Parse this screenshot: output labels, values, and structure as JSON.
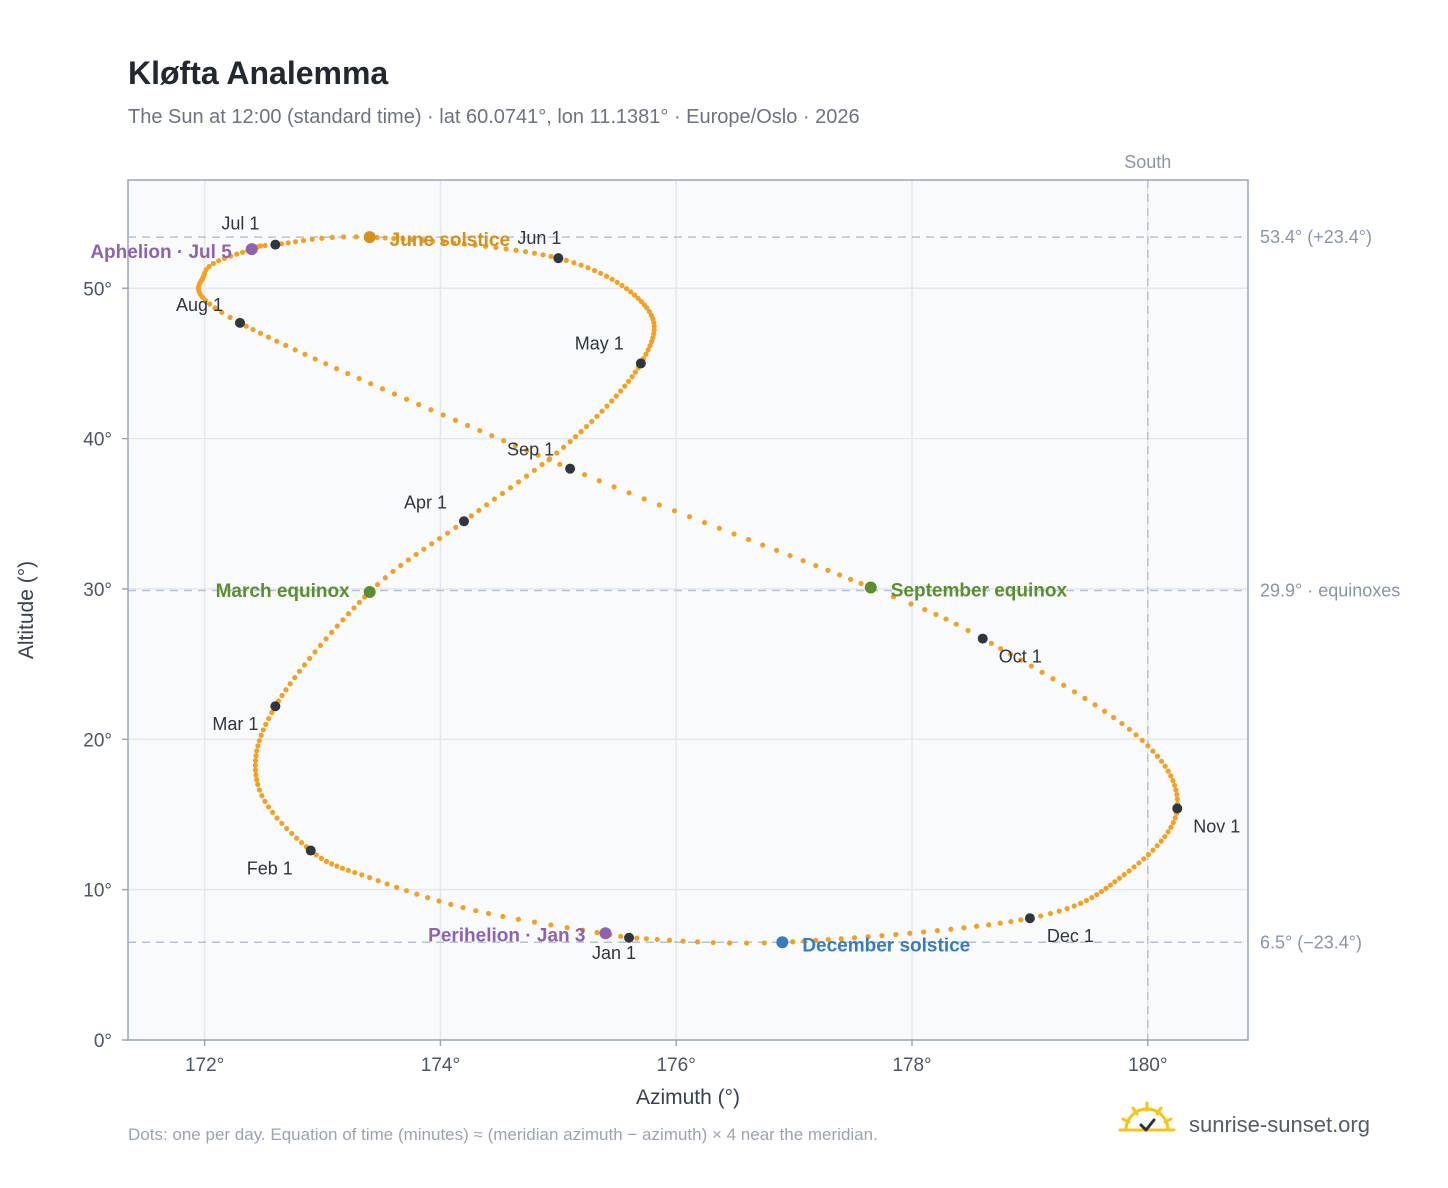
{
  "chart_data": {
    "type": "scatter",
    "title": "Kløfta Analemma",
    "subtitle": "The Sun at 12:00 (standard time) · lat 60.0741°, lon 11.1381° · Europe/Oslo · 2026",
    "xlabel": "Azimuth (°)",
    "ylabel": "Altitude (°)",
    "xlim": [
      171.35,
      180.85
    ],
    "ylim": [
      0,
      57.2
    ],
    "xticks": [
      {
        "value": 172,
        "label": "172°"
      },
      {
        "value": 174,
        "label": "174°"
      },
      {
        "value": 176,
        "label": "176°"
      },
      {
        "value": 178,
        "label": "178°"
      },
      {
        "value": 180,
        "label": "180°"
      }
    ],
    "yticks": [
      {
        "value": 0,
        "label": "0°"
      },
      {
        "value": 10,
        "label": "10°"
      },
      {
        "value": 20,
        "label": "20°"
      },
      {
        "value": 30,
        "label": "30°"
      },
      {
        "value": 40,
        "label": "40°"
      },
      {
        "value": 50,
        "label": "50°"
      }
    ],
    "grid": true,
    "series_color": "#f2a125",
    "reference_lines": [
      {
        "axis": "y",
        "value": 53.4,
        "label": "53.4° (+23.4°)"
      },
      {
        "axis": "y",
        "value": 29.9,
        "label": "29.9° · equinoxes"
      },
      {
        "axis": "y",
        "value": 6.5,
        "label": "6.5° (−23.4°)"
      },
      {
        "axis": "x",
        "value": 180,
        "label": "South"
      }
    ],
    "month_markers": [
      {
        "label": "Jan 1",
        "az": 175.6,
        "alt": 6.8
      },
      {
        "label": "Feb 1",
        "az": 172.9,
        "alt": 12.6
      },
      {
        "label": "Mar 1",
        "az": 172.6,
        "alt": 22.2
      },
      {
        "label": "Apr 1",
        "az": 174.2,
        "alt": 34.5
      },
      {
        "label": "May 1",
        "az": 175.7,
        "alt": 45.0
      },
      {
        "label": "Jun 1",
        "az": 175.0,
        "alt": 52.0
      },
      {
        "label": "Jul 1",
        "az": 172.6,
        "alt": 52.9
      },
      {
        "label": "Aug 1",
        "az": 172.3,
        "alt": 47.7
      },
      {
        "label": "Sep 1",
        "az": 175.1,
        "alt": 38.0
      },
      {
        "label": "Oct 1",
        "az": 178.6,
        "alt": 26.7
      },
      {
        "label": "Nov 1",
        "az": 180.25,
        "alt": 15.4
      },
      {
        "label": "Dec 1",
        "az": 179.0,
        "alt": 8.1
      }
    ],
    "events": [
      {
        "label": "June solstice",
        "az": 173.4,
        "alt": 53.4,
        "color": "#d4901a"
      },
      {
        "label": "March equinox",
        "az": 173.4,
        "alt": 29.8,
        "color": "#5b8f2e"
      },
      {
        "label": "September equinox",
        "az": 177.65,
        "alt": 30.1,
        "color": "#5b8f2e"
      },
      {
        "label": "December solstice",
        "az": 176.9,
        "alt": 6.5,
        "color": "#3a7bbf"
      },
      {
        "label": "Aphelion · Jul 5",
        "az": 172.4,
        "alt": 52.6,
        "color": "#8e62b0"
      },
      {
        "label": "Perihelion · Jan 3",
        "az": 175.4,
        "alt": 7.1,
        "color": "#8e62b0"
      }
    ],
    "curve_anchors": [
      [
        1,
        175.6,
        6.8
      ],
      [
        12,
        174.3,
        8.6
      ],
      [
        22,
        173.4,
        10.8
      ],
      [
        32,
        172.9,
        12.6
      ],
      [
        45,
        172.45,
        17.0
      ],
      [
        60,
        172.6,
        22.2
      ],
      [
        79,
        173.4,
        29.8
      ],
      [
        91,
        174.2,
        34.5
      ],
      [
        105,
        175.1,
        39.8
      ],
      [
        121,
        175.7,
        45.0
      ],
      [
        135,
        175.75,
        48.7
      ],
      [
        152,
        175.0,
        52.0
      ],
      [
        172,
        173.4,
        53.4
      ],
      [
        182,
        172.6,
        52.9
      ],
      [
        186,
        172.4,
        52.6
      ],
      [
        196,
        172.0,
        51.0
      ],
      [
        213,
        172.3,
        47.7
      ],
      [
        244,
        175.1,
        38.0
      ],
      [
        266,
        177.65,
        30.1
      ],
      [
        274,
        178.6,
        26.7
      ],
      [
        290,
        179.9,
        20.3
      ],
      [
        305,
        180.25,
        15.4
      ],
      [
        320,
        179.8,
        11.0
      ],
      [
        335,
        179.0,
        8.1
      ],
      [
        355,
        176.9,
        6.5
      ],
      [
        366,
        175.6,
        6.8
      ]
    ]
  },
  "footnote": "Dots: one per day. Equation of time (minutes) ≈ (meridian azimuth − azimuth) × 4 near the meridian.",
  "brand": {
    "name": "sunrise-sunset.org",
    "icon": "sun-logo-icon",
    "color": "#f5c518"
  }
}
